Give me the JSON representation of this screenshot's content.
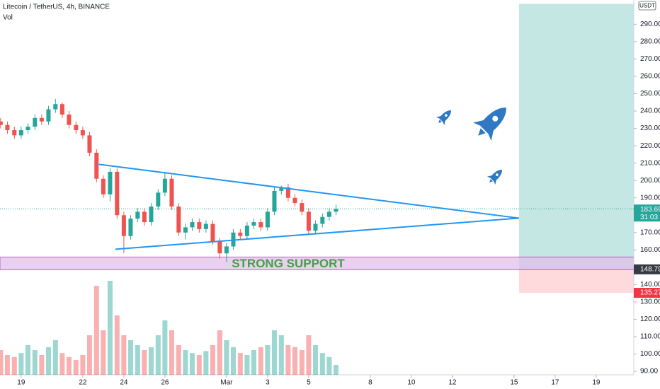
{
  "chart_data": {
    "type": "candlestick",
    "title": "Litecoin / TetherUS, 4h, BINANCE",
    "volume_label": "Vol",
    "currency": "USDT",
    "x": [
      -1,
      -0.67,
      -0.33,
      0,
      0.33,
      0.67,
      1,
      1.33,
      1.67,
      2,
      2.33,
      2.67,
      3,
      3.33,
      3.67,
      4,
      4.33,
      4.67,
      5,
      5.33,
      5.67,
      6,
      6.33,
      6.67,
      7,
      7.33,
      7.67,
      8,
      8.33,
      8.67,
      9,
      9.33,
      9.67,
      10,
      10.33,
      10.67,
      11,
      11.33,
      11.67,
      12,
      12.33,
      12.67,
      13,
      13.33,
      13.67,
      14,
      14.33,
      14.67,
      15,
      15.33
    ],
    "open": [
      234,
      232,
      229,
      226,
      229,
      231,
      236,
      234,
      241,
      244,
      238,
      232,
      229,
      226,
      216,
      201,
      192,
      205,
      180,
      168,
      178,
      182,
      176,
      185,
      193,
      201,
      185,
      170,
      173,
      176,
      172,
      175,
      165,
      158,
      162,
      170,
      168,
      174,
      176,
      173,
      182,
      194,
      196,
      190,
      187,
      182,
      171,
      175,
      179,
      182
    ],
    "high": [
      236,
      234,
      231,
      231,
      233,
      238,
      238,
      243,
      247,
      245,
      240,
      234,
      231,
      228,
      218,
      203,
      207,
      207,
      182,
      180,
      184,
      184,
      187,
      195,
      205,
      203,
      187,
      175,
      178,
      178,
      177,
      177,
      167,
      164,
      172,
      172,
      176,
      178,
      178,
      184,
      196,
      197,
      198,
      192,
      189,
      184,
      177,
      181,
      184,
      186
    ],
    "low": [
      230,
      227,
      224,
      224,
      227,
      229,
      232,
      232,
      239,
      236,
      230,
      227,
      224,
      214,
      199,
      190,
      188,
      178,
      158,
      166,
      176,
      174,
      174,
      183,
      191,
      183,
      168,
      166,
      171,
      170,
      170,
      163,
      155,
      153,
      160,
      166,
      166,
      172,
      171,
      171,
      180,
      192,
      188,
      185,
      180,
      169,
      169,
      173,
      177,
      180
    ],
    "close": [
      232,
      229,
      226,
      229,
      231,
      236,
      234,
      241,
      244,
      238,
      232,
      229,
      226,
      216,
      201,
      192,
      205,
      180,
      168,
      178,
      182,
      176,
      185,
      193,
      201,
      185,
      170,
      173,
      176,
      172,
      175,
      165,
      158,
      162,
      170,
      168,
      174,
      176,
      173,
      182,
      194,
      196,
      190,
      187,
      182,
      171,
      175,
      179,
      182,
      183.69
    ],
    "volume": [
      25,
      20,
      18,
      22,
      30,
      25,
      20,
      28,
      35,
      22,
      18,
      15,
      20,
      40,
      90,
      45,
      95,
      60,
      40,
      35,
      30,
      25,
      28,
      40,
      55,
      45,
      30,
      25,
      22,
      20,
      24,
      30,
      45,
      35,
      28,
      22,
      20,
      25,
      28,
      30,
      45,
      40,
      30,
      28,
      25,
      40,
      30,
      22,
      18,
      10
    ],
    "up_color": "#26a69a",
    "down_color": "#ef5350",
    "xlim": [
      -1.03,
      29.83
    ],
    "ylim": [
      88,
      304
    ],
    "xticks": [
      {
        "value": 0,
        "label": "19"
      },
      {
        "value": 3,
        "label": "22"
      },
      {
        "value": 5,
        "label": "24"
      },
      {
        "value": 7,
        "label": "26"
      },
      {
        "value": 10,
        "label": "Mar"
      },
      {
        "value": 12,
        "label": "3"
      },
      {
        "value": 14,
        "label": "5"
      },
      {
        "value": 17,
        "label": "8"
      },
      {
        "value": 19,
        "label": "10"
      },
      {
        "value": 21,
        "label": "12"
      },
      {
        "value": 24,
        "label": "15"
      },
      {
        "value": 26,
        "label": "17"
      },
      {
        "value": 28,
        "label": "19"
      }
    ],
    "yticks": [
      {
        "value": 90,
        "label": "90.00"
      },
      {
        "value": 100,
        "label": "100.00"
      },
      {
        "value": 110,
        "label": "110.00"
      },
      {
        "value": 120,
        "label": "120.00"
      },
      {
        "value": 130,
        "label": "130.00"
      },
      {
        "value": 140,
        "label": "140.00"
      },
      {
        "value": 160,
        "label": "160.00"
      },
      {
        "value": 170,
        "label": "170.00"
      },
      {
        "value": 180,
        "label": "180.00"
      },
      {
        "value": 190,
        "label": "190.00"
      },
      {
        "value": 200,
        "label": "200.00"
      },
      {
        "value": 210,
        "label": "210.00"
      },
      {
        "value": 220,
        "label": "220.00"
      },
      {
        "value": 230,
        "label": "230.00"
      },
      {
        "value": 240,
        "label": "240.00"
      },
      {
        "value": 250,
        "label": "250.00"
      },
      {
        "value": 260,
        "label": "260.00"
      },
      {
        "value": 270,
        "label": "270.00"
      },
      {
        "value": 280,
        "label": "280.00"
      },
      {
        "value": 290,
        "label": "290.00"
      }
    ],
    "last_price": 183.69,
    "countdown": "31:03",
    "trendlines": [
      {
        "x": [
          3.79,
          24.24
        ],
        "y": [
          209.3,
          178.3
        ],
        "color": "#2196f3"
      },
      {
        "x": [
          4.59,
          24.24
        ],
        "y": [
          160.4,
          178.3
        ],
        "color": "#2196f3"
      }
    ],
    "support_zone": {
      "label": "STRONG SUPPORT",
      "low": 148.6,
      "high": 155.9,
      "color": "#e1bee7",
      "text_color": "#43a047"
    },
    "position": {
      "x_start": 24.24,
      "target": 301.8,
      "entry": 148.79,
      "stop": 135.27,
      "target_color": "#b2dfdb",
      "stop_color": "#ffcdd2"
    }
  }
}
